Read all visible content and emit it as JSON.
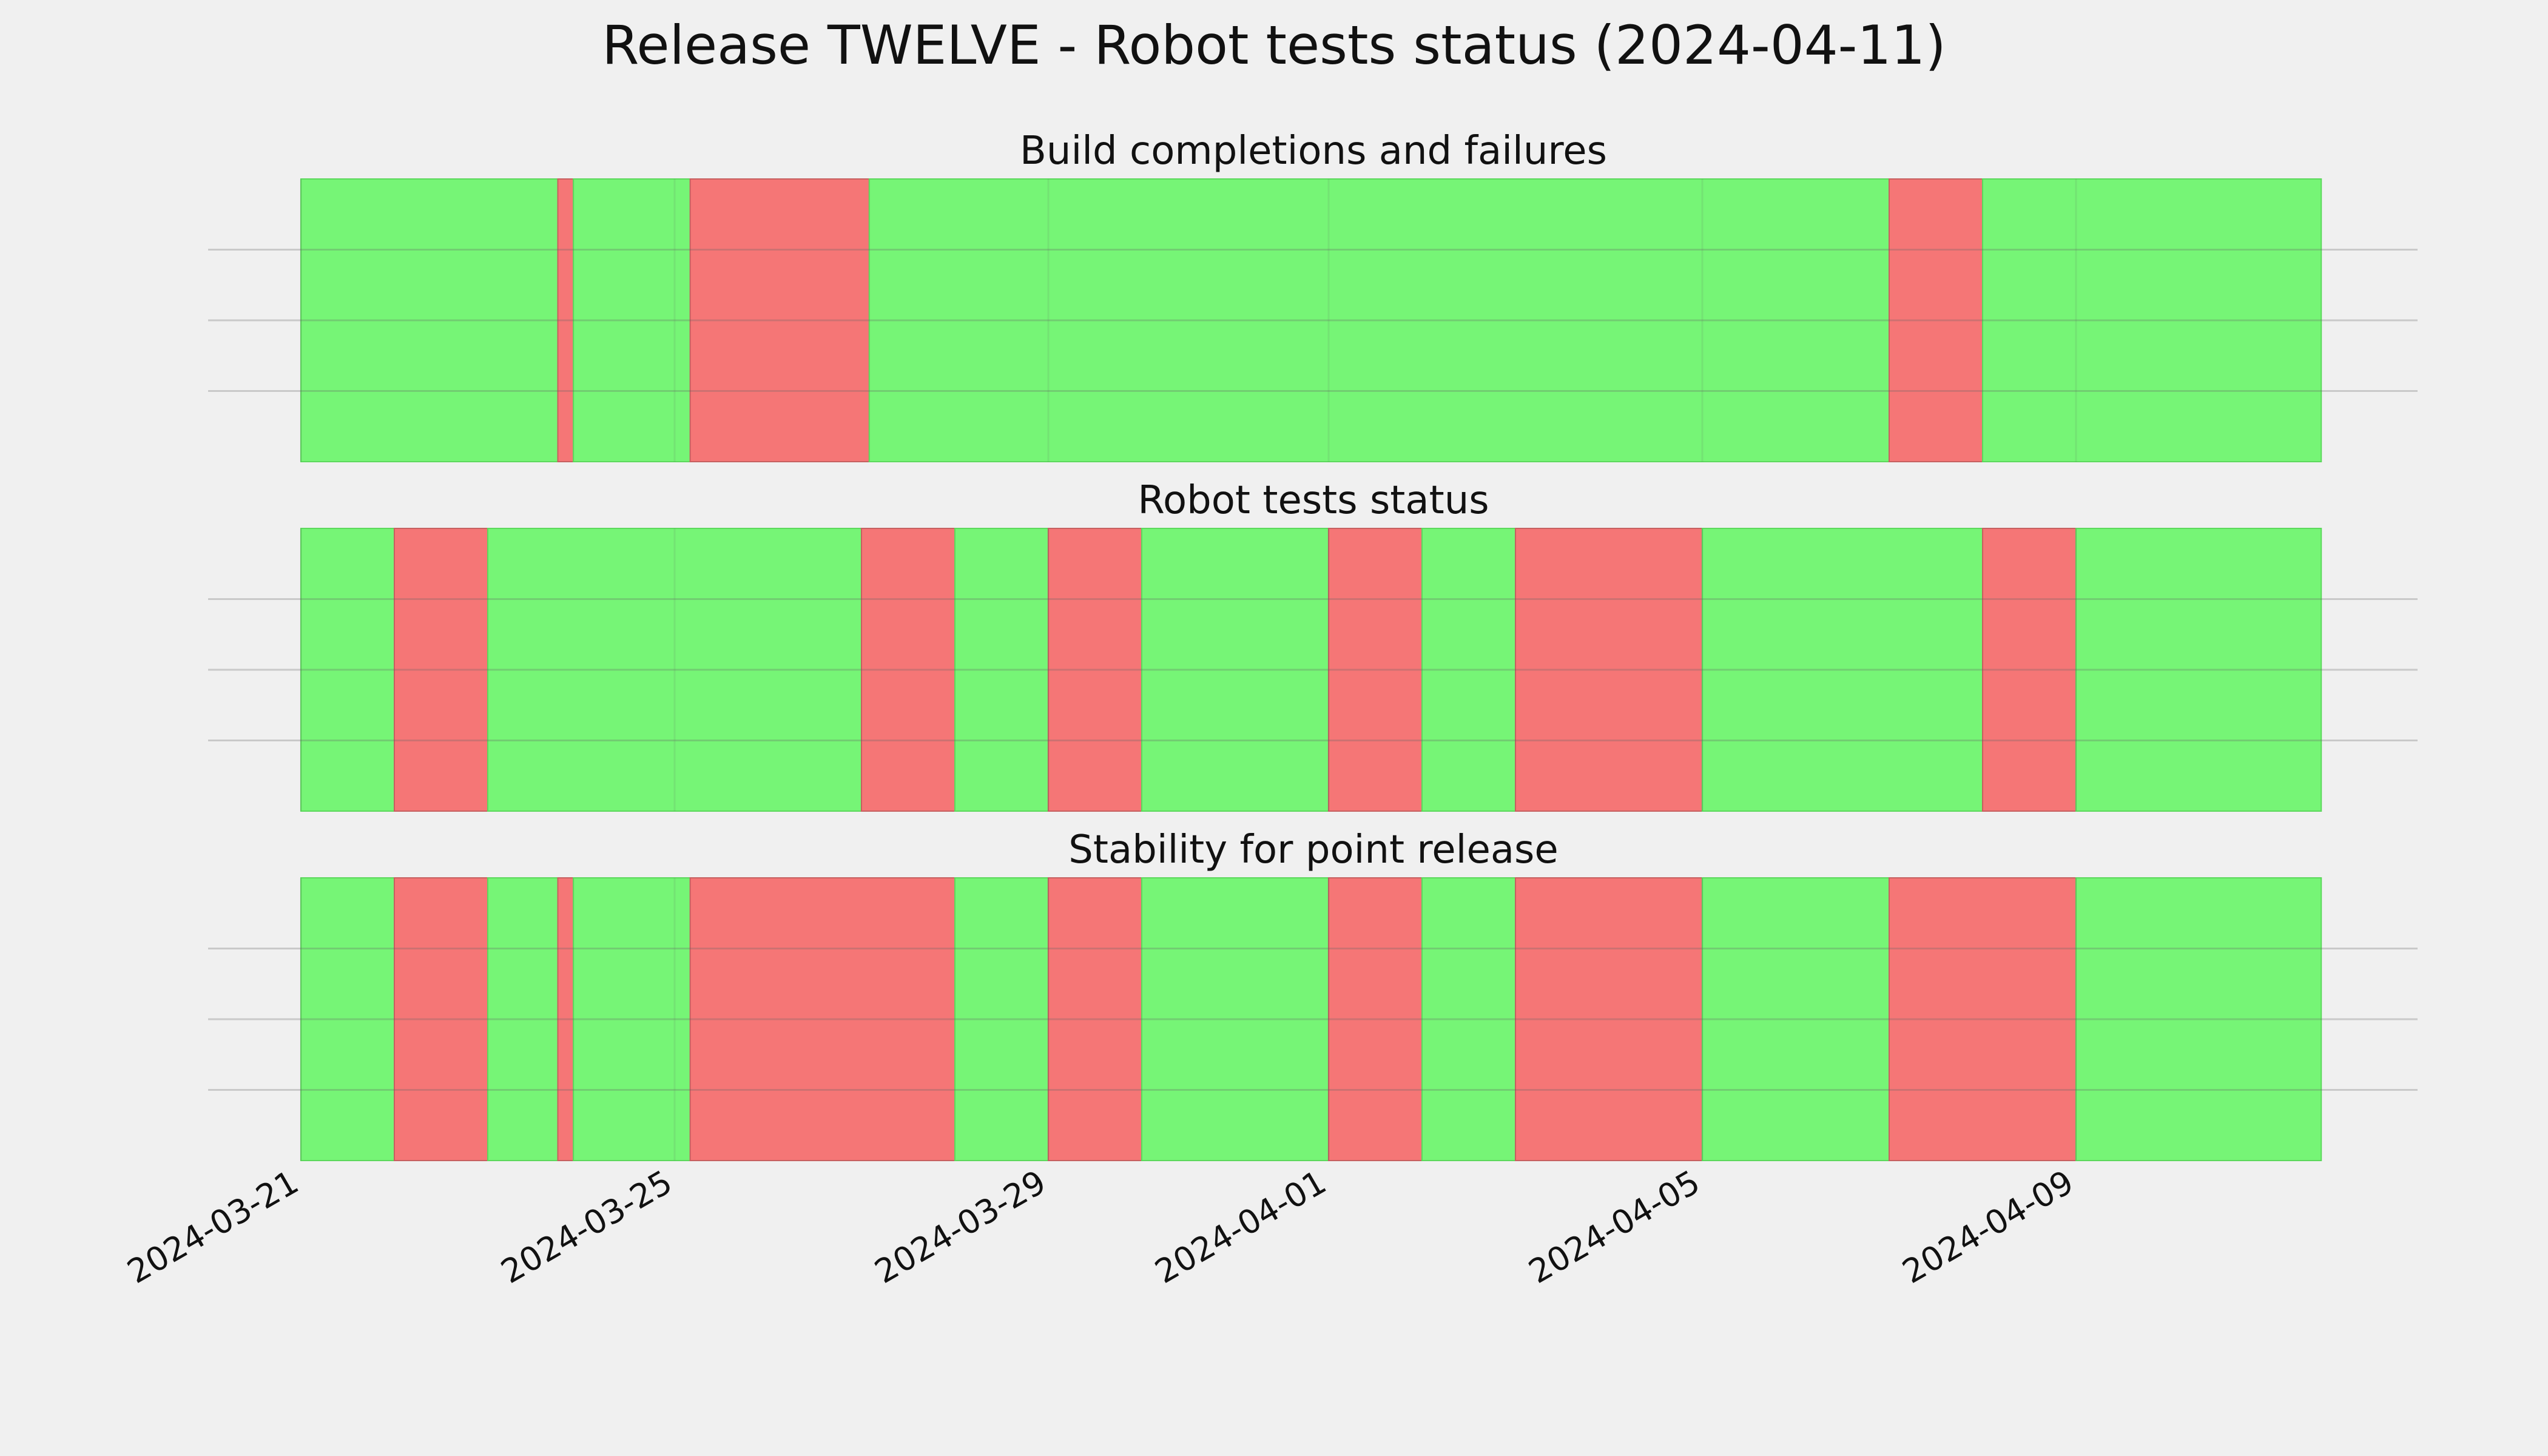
{
  "colors": {
    "background": "#f0f0f0",
    "pass": "#76f576",
    "fail": "#f57676",
    "grid": "#c4c4c4",
    "text": "#111111"
  },
  "chart_data": {
    "type": "timeline",
    "title": "Release TWELVE - Robot tests status (2024-04-11)",
    "x_axis": {
      "type": "date",
      "range": [
        "2024-03-21",
        "2024-04-12"
      ],
      "ticks": [
        "2024-03-21",
        "2024-03-25",
        "2024-03-29",
        "2024-04-01",
        "2024-04-05",
        "2024-04-09"
      ]
    },
    "grid": true,
    "panels": [
      {
        "title": "Build completions and failures",
        "segments": [
          {
            "start": "2024-03-21",
            "end": "2024-03-23 18:00",
            "status": "pass"
          },
          {
            "start": "2024-03-23 18:00",
            "end": "2024-03-23 22:00",
            "status": "fail"
          },
          {
            "start": "2024-03-23 22:00",
            "end": "2024-03-25 04:00",
            "status": "pass"
          },
          {
            "start": "2024-03-25 04:00",
            "end": "2024-03-27 02:00",
            "status": "fail"
          },
          {
            "start": "2024-03-27 02:00",
            "end": "2024-04-07",
            "status": "pass"
          },
          {
            "start": "2024-04-07",
            "end": "2024-04-08",
            "status": "fail"
          },
          {
            "start": "2024-04-08",
            "end": "2024-04-11 15:00",
            "status": "pass"
          }
        ]
      },
      {
        "title": "Robot tests status",
        "segments": [
          {
            "start": "2024-03-21",
            "end": "2024-03-22",
            "status": "pass"
          },
          {
            "start": "2024-03-22",
            "end": "2024-03-23",
            "status": "fail"
          },
          {
            "start": "2024-03-23",
            "end": "2024-03-27",
            "status": "pass"
          },
          {
            "start": "2024-03-27",
            "end": "2024-03-28",
            "status": "fail"
          },
          {
            "start": "2024-03-28",
            "end": "2024-03-29",
            "status": "pass"
          },
          {
            "start": "2024-03-29",
            "end": "2024-03-30",
            "status": "fail"
          },
          {
            "start": "2024-03-30",
            "end": "2024-04-01",
            "status": "pass"
          },
          {
            "start": "2024-04-01",
            "end": "2024-04-02",
            "status": "fail"
          },
          {
            "start": "2024-04-02",
            "end": "2024-04-03",
            "status": "pass"
          },
          {
            "start": "2024-04-03",
            "end": "2024-04-05",
            "status": "fail"
          },
          {
            "start": "2024-04-05",
            "end": "2024-04-08",
            "status": "pass"
          },
          {
            "start": "2024-04-08",
            "end": "2024-04-09",
            "status": "fail"
          },
          {
            "start": "2024-04-09",
            "end": "2024-04-11 15:00",
            "status": "pass"
          }
        ]
      },
      {
        "title": "Stability for point release",
        "segments": [
          {
            "start": "2024-03-21",
            "end": "2024-03-22",
            "status": "pass"
          },
          {
            "start": "2024-03-22",
            "end": "2024-03-23",
            "status": "fail"
          },
          {
            "start": "2024-03-23",
            "end": "2024-03-23 18:00",
            "status": "pass"
          },
          {
            "start": "2024-03-23 18:00",
            "end": "2024-03-23 22:00",
            "status": "fail"
          },
          {
            "start": "2024-03-23 22:00",
            "end": "2024-03-25 04:00",
            "status": "pass"
          },
          {
            "start": "2024-03-25 04:00",
            "end": "2024-03-28",
            "status": "fail"
          },
          {
            "start": "2024-03-28",
            "end": "2024-03-29",
            "status": "pass"
          },
          {
            "start": "2024-03-29",
            "end": "2024-03-30",
            "status": "fail"
          },
          {
            "start": "2024-03-30",
            "end": "2024-04-01",
            "status": "pass"
          },
          {
            "start": "2024-04-01",
            "end": "2024-04-02",
            "status": "fail"
          },
          {
            "start": "2024-04-02",
            "end": "2024-04-03",
            "status": "pass"
          },
          {
            "start": "2024-04-03",
            "end": "2024-04-05",
            "status": "fail"
          },
          {
            "start": "2024-04-05",
            "end": "2024-04-07",
            "status": "pass"
          },
          {
            "start": "2024-04-07",
            "end": "2024-04-09",
            "status": "fail"
          },
          {
            "start": "2024-04-09",
            "end": "2024-04-11 15:00",
            "status": "pass"
          }
        ]
      }
    ]
  }
}
